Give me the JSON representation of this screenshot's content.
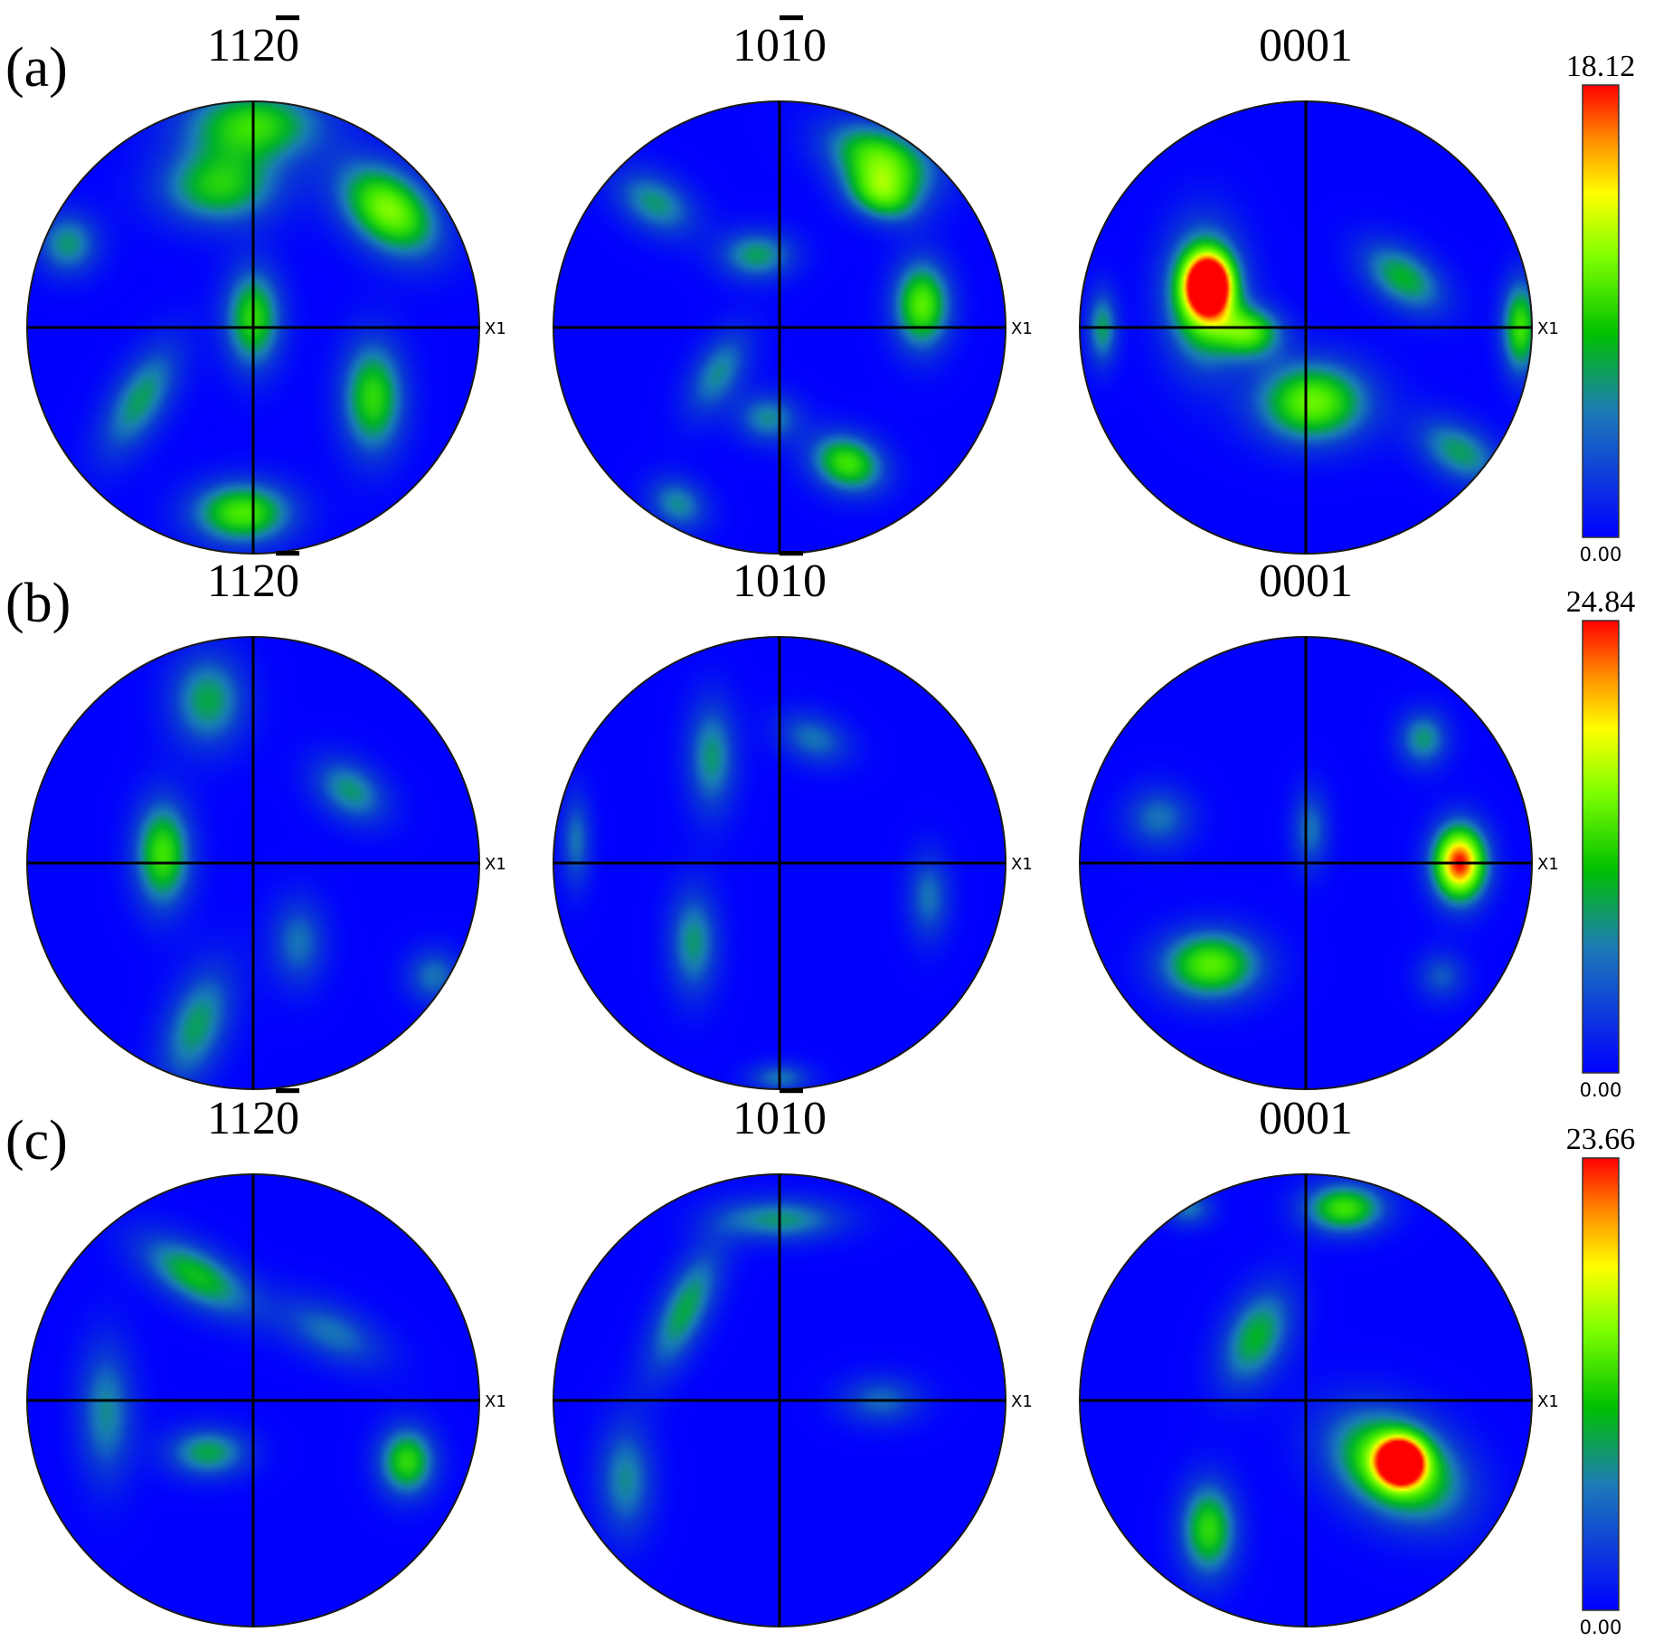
{
  "axis_label": "X1",
  "rows": [
    {
      "label": "(a)",
      "scale": {
        "max": "18.12",
        "min": "0.00"
      },
      "planes": [
        {
          "parts": [
            "11",
            "2",
            "0"
          ],
          "bar_index": 2,
          "poles": [
            [
              0.0,
              0.9,
              0.22,
              0.12,
              0.55,
              0
            ],
            [
              -0.15,
              0.62,
              0.19,
              0.12,
              0.5,
              0
            ],
            [
              0.6,
              0.52,
              0.18,
              0.12,
              0.68,
              -40
            ],
            [
              0.0,
              0.04,
              0.09,
              0.16,
              0.55,
              0
            ],
            [
              -0.5,
              -0.32,
              0.09,
              0.2,
              0.4,
              -30
            ],
            [
              0.53,
              -0.31,
              0.1,
              0.18,
              0.55,
              0
            ],
            [
              -0.05,
              -0.82,
              0.16,
              0.1,
              0.6,
              0
            ],
            [
              -0.82,
              0.37,
              0.1,
              0.1,
              0.38,
              0
            ]
          ]
        },
        {
          "parts": [
            "10",
            "1",
            "0"
          ],
          "bar_index": 1,
          "poles": [
            [
              0.45,
              0.75,
              0.18,
              0.1,
              0.6,
              -20
            ],
            [
              0.45,
              0.58,
              0.12,
              0.08,
              0.5,
              -20
            ],
            [
              -0.55,
              0.55,
              0.14,
              0.09,
              0.38,
              -30
            ],
            [
              -0.1,
              0.32,
              0.12,
              0.08,
              0.4,
              0
            ],
            [
              0.63,
              0.1,
              0.09,
              0.14,
              0.62,
              0
            ],
            [
              -0.27,
              -0.2,
              0.08,
              0.15,
              0.35,
              -30
            ],
            [
              0.3,
              -0.6,
              0.12,
              0.09,
              0.58,
              -20
            ],
            [
              -0.05,
              -0.4,
              0.1,
              0.08,
              0.35,
              0
            ],
            [
              -0.45,
              -0.78,
              0.1,
              0.08,
              0.35,
              -30
            ]
          ]
        },
        {
          "parts": [
            "0001"
          ],
          "bar_index": -1,
          "poles": [
            [
              -0.45,
              0.14,
              0.12,
              0.21,
              0.68,
              0
            ],
            [
              -0.43,
              0.19,
              0.07,
              0.09,
              1.0,
              0
            ],
            [
              -0.24,
              -0.02,
              0.1,
              0.08,
              0.52,
              0
            ],
            [
              0.03,
              -0.33,
              0.18,
              0.13,
              0.65,
              0
            ],
            [
              0.43,
              0.22,
              0.15,
              0.09,
              0.45,
              -35
            ],
            [
              0.95,
              0.0,
              0.06,
              0.15,
              0.58,
              0
            ],
            [
              0.68,
              -0.55,
              0.15,
              0.09,
              0.4,
              -30
            ],
            [
              -0.9,
              0.0,
              0.05,
              0.12,
              0.4,
              0
            ]
          ]
        }
      ]
    },
    {
      "label": "(b)",
      "scale": {
        "max": "24.84",
        "min": "0.00"
      },
      "planes": [
        {
          "parts": [
            "11",
            "2",
            "0"
          ],
          "bar_index": 2,
          "poles": [
            [
              -0.2,
              0.72,
              0.12,
              0.15,
              0.42,
              0
            ],
            [
              -0.4,
              0.04,
              0.09,
              0.17,
              0.58,
              0
            ],
            [
              0.43,
              0.32,
              0.13,
              0.09,
              0.38,
              -35
            ],
            [
              -0.25,
              -0.72,
              0.1,
              0.2,
              0.4,
              -20
            ],
            [
              0.2,
              -0.35,
              0.09,
              0.14,
              0.3,
              0
            ],
            [
              0.8,
              -0.5,
              0.09,
              0.09,
              0.3,
              0
            ]
          ]
        },
        {
          "parts": [
            "10",
            "1",
            "0"
          ],
          "bar_index": 1,
          "poles": [
            [
              -0.3,
              0.47,
              0.08,
              0.18,
              0.38,
              0
            ],
            [
              -0.38,
              -0.35,
              0.08,
              0.17,
              0.38,
              0
            ],
            [
              0.15,
              0.55,
              0.12,
              0.08,
              0.3,
              -20
            ],
            [
              -0.9,
              0.1,
              0.05,
              0.15,
              0.3,
              0
            ],
            [
              0.66,
              -0.15,
              0.07,
              0.14,
              0.3,
              0
            ],
            [
              0.0,
              -0.95,
              0.1,
              0.05,
              0.3,
              0
            ]
          ]
        },
        {
          "parts": [
            "0001"
          ],
          "bar_index": -1,
          "poles": [
            [
              0.68,
              0.0,
              0.085,
              0.12,
              1.0,
              0
            ],
            [
              -0.42,
              -0.45,
              0.16,
              0.11,
              0.62,
              0
            ],
            [
              0.52,
              0.55,
              0.08,
              0.09,
              0.38,
              0
            ],
            [
              -0.65,
              0.2,
              0.11,
              0.1,
              0.3,
              0
            ],
            [
              0.02,
              0.15,
              0.06,
              0.13,
              0.3,
              0
            ],
            [
              0.6,
              -0.5,
              0.08,
              0.08,
              0.25,
              0
            ]
          ]
        }
      ]
    },
    {
      "label": "(c)",
      "scale": {
        "max": "23.66",
        "min": "0.00"
      },
      "planes": [
        {
          "parts": [
            "11",
            "2",
            "0"
          ],
          "bar_index": 2,
          "poles": [
            [
              -0.25,
              0.55,
              0.2,
              0.09,
              0.48,
              -30
            ],
            [
              0.35,
              0.3,
              0.18,
              0.09,
              0.3,
              -25
            ],
            [
              -0.65,
              -0.05,
              0.09,
              0.22,
              0.35,
              0
            ],
            [
              -0.2,
              -0.23,
              0.13,
              0.08,
              0.42,
              0
            ],
            [
              0.68,
              -0.27,
              0.09,
              0.11,
              0.55,
              0
            ]
          ]
        },
        {
          "parts": [
            "10",
            "1",
            "0"
          ],
          "bar_index": 1,
          "poles": [
            [
              0.0,
              0.8,
              0.2,
              0.07,
              0.38,
              0
            ],
            [
              -0.42,
              0.4,
              0.08,
              0.22,
              0.42,
              -25
            ],
            [
              -0.68,
              -0.35,
              0.09,
              0.18,
              0.35,
              0
            ],
            [
              0.45,
              0.0,
              0.13,
              0.08,
              0.28,
              0
            ]
          ]
        },
        {
          "parts": [
            "0001"
          ],
          "bar_index": -1,
          "poles": [
            [
              0.4,
              -0.29,
              0.22,
              0.15,
              0.72,
              -30
            ],
            [
              0.42,
              -0.27,
              0.07,
              0.07,
              1.0,
              0
            ],
            [
              0.17,
              0.85,
              0.13,
              0.08,
              0.58,
              0
            ],
            [
              -0.22,
              0.28,
              0.1,
              0.17,
              0.45,
              -25
            ],
            [
              -0.43,
              -0.57,
              0.09,
              0.15,
              0.55,
              0
            ],
            [
              -0.52,
              0.85,
              0.08,
              0.06,
              0.3,
              0
            ]
          ]
        }
      ]
    }
  ]
}
